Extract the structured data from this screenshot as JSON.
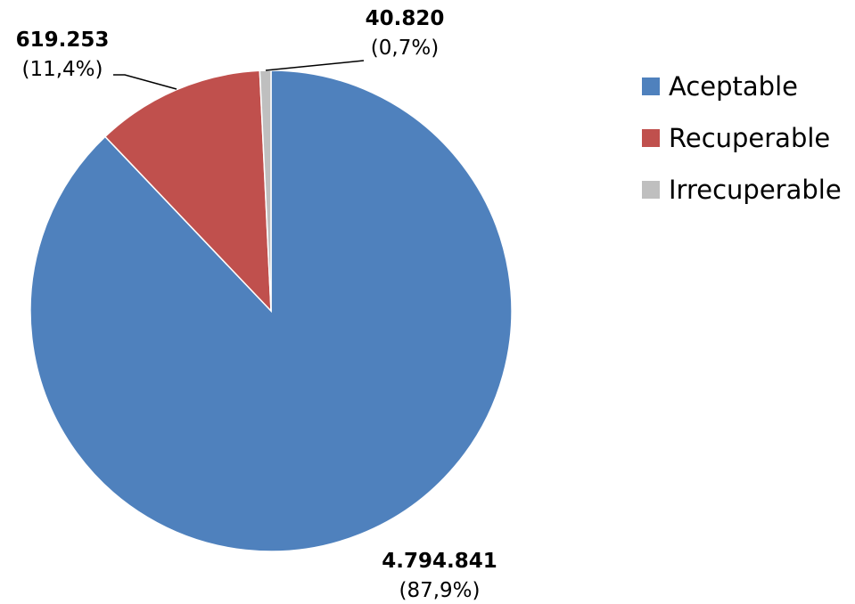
{
  "chart_data": {
    "type": "pie",
    "categories": [
      "Aceptable",
      "Recuperable",
      "Irrecuperable"
    ],
    "values": [
      4794841,
      619253,
      40820
    ],
    "value_labels": [
      "4.794.841",
      "619.253",
      "40.820"
    ],
    "percent_labels": [
      "(87,9%)",
      "(11,4%)",
      "(0,7%)"
    ],
    "colors": [
      "#4F81BD",
      "#C0504D",
      "#BFBFBF"
    ],
    "legend_position": "right",
    "start_angle": "top",
    "direction": "clockwise"
  },
  "legend": {
    "items": [
      {
        "label": "Aceptable",
        "color": "#4F81BD"
      },
      {
        "label": "Recuperable",
        "color": "#C0504D"
      },
      {
        "label": "Irrecuperable",
        "color": "#BFBFBF"
      }
    ]
  }
}
